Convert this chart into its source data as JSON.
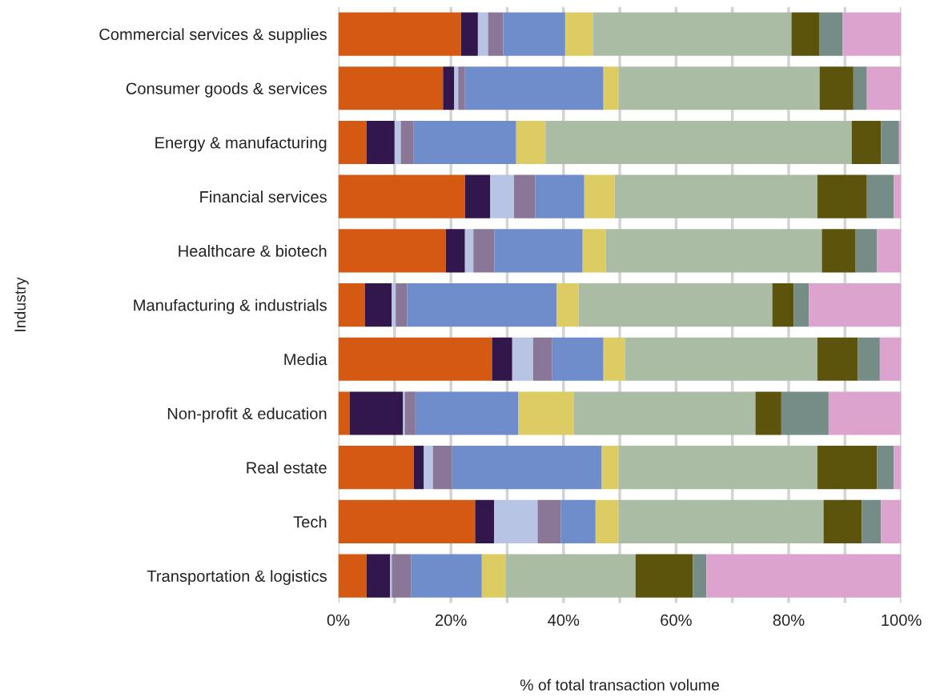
{
  "chart_data": {
    "type": "bar",
    "orientation": "horizontal",
    "stacked": true,
    "ylabel": "Industry",
    "xlabel": "% of total transaction volume",
    "categories": [
      "Commercial services & supplies",
      "Consumer goods & services",
      "Energy & manufacturing",
      "Financial services",
      "Healthcare & biotech",
      "Manufacturing & industrials",
      "Media",
      "Non-profit & education",
      "Real estate",
      "Tech",
      "Transportation & logistics"
    ],
    "series": [
      {
        "color": "#d45a14",
        "values": [
          21.8,
          18.6,
          5.0,
          22.5,
          19.1,
          4.7,
          27.3,
          2.0,
          13.4,
          24.3,
          5.0
        ]
      },
      {
        "color": "#32174d",
        "values": [
          3.0,
          2.0,
          5.0,
          4.5,
          3.4,
          4.8,
          3.6,
          9.5,
          1.8,
          3.4,
          4.2
        ]
      },
      {
        "color": "#b7c4e3",
        "values": [
          1.8,
          0.7,
          1.1,
          4.2,
          1.5,
          0.7,
          3.7,
          0.3,
          1.6,
          7.7,
          0.3
        ]
      },
      {
        "color": "#8a7697",
        "values": [
          2.7,
          1.2,
          2.3,
          3.8,
          3.7,
          2.0,
          3.4,
          1.9,
          3.4,
          4.1,
          3.4
        ]
      },
      {
        "color": "#6f8ccb",
        "values": [
          11.0,
          24.6,
          18.2,
          8.7,
          15.7,
          26.6,
          9.1,
          18.3,
          26.6,
          6.2,
          12.6
        ]
      },
      {
        "color": "#ddcc63",
        "values": [
          4.9,
          2.7,
          5.2,
          5.4,
          4.1,
          3.9,
          3.8,
          9.8,
          3.0,
          4.1,
          4.2
        ]
      },
      {
        "color": "#abbca5",
        "values": [
          35.3,
          35.7,
          54.4,
          36.0,
          38.4,
          34.4,
          34.2,
          32.3,
          35.3,
          36.4,
          23.1
        ]
      },
      {
        "color": "#5c530d",
        "values": [
          5.0,
          6.0,
          5.2,
          8.8,
          6.0,
          3.8,
          7.2,
          4.6,
          10.6,
          6.8,
          10.2
        ]
      },
      {
        "color": "#768d87",
        "values": [
          4.1,
          2.4,
          3.2,
          4.8,
          3.8,
          2.7,
          3.9,
          8.4,
          3.0,
          3.4,
          2.4
        ]
      },
      {
        "color": "#dba3cd",
        "values": [
          10.4,
          6.1,
          0.4,
          1.3,
          4.3,
          16.4,
          3.8,
          12.9,
          1.3,
          3.6,
          34.6
        ]
      }
    ],
    "xlim": [
      0,
      100
    ],
    "xticks": [
      {
        "value": 0,
        "label": "0%"
      },
      {
        "value": 10,
        "label": null
      },
      {
        "value": 20,
        "label": "20%"
      },
      {
        "value": 30,
        "label": null
      },
      {
        "value": 40,
        "label": "40%"
      },
      {
        "value": 50,
        "label": null
      },
      {
        "value": 60,
        "label": "60%"
      },
      {
        "value": 70,
        "label": null
      },
      {
        "value": 80,
        "label": "80%"
      },
      {
        "value": 90,
        "label": null
      },
      {
        "value": 100,
        "label": "100%"
      }
    ],
    "grid": "x"
  }
}
